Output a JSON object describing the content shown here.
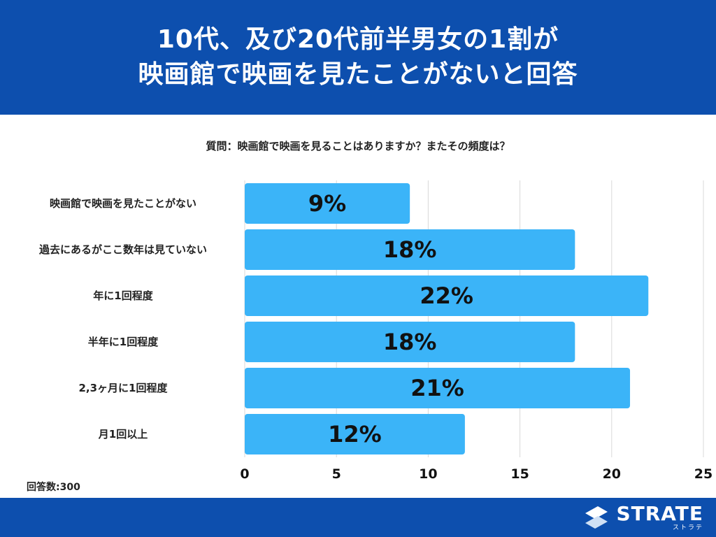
{
  "header": {
    "title_line1": "10代、及び20代前半男女の1割が",
    "title_line2": "映画館で映画を見たことがないと回答"
  },
  "question": "質問：映画館で映画を見ることはありますか？またその頻度は？",
  "respondents": "回答数:300",
  "brand": {
    "name": "STRATE",
    "kana": "ストラテ"
  },
  "colors": {
    "header": "#0d4fae",
    "bar": "#3bb4f8",
    "grid": "#d8d8d8"
  },
  "chart_data": {
    "type": "bar",
    "orientation": "horizontal",
    "categories": [
      "映画館で映画を見たことがない",
      "過去にあるがここ数年は見ていない",
      "年に1回程度",
      "半年に1回程度",
      "2,3ヶ月に1回程度",
      "月1回以上"
    ],
    "values": [
      9,
      18,
      22,
      18,
      21,
      12
    ],
    "data_labels": [
      "9%",
      "18%",
      "22%",
      "18%",
      "21%",
      "12%"
    ],
    "xlim": [
      0,
      25
    ],
    "xticks": [
      "0",
      "5",
      "10",
      "15",
      "20",
      "25"
    ],
    "grid": true
  }
}
